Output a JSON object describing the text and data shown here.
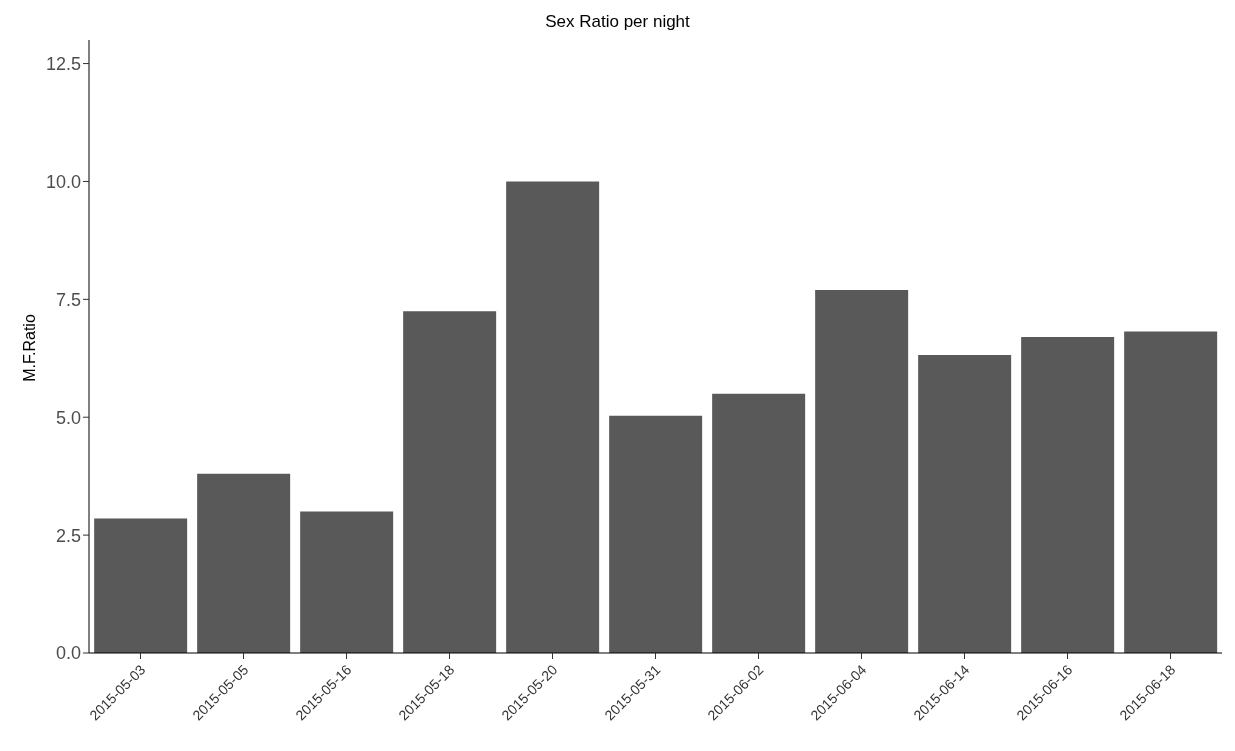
{
  "chart_data": {
    "type": "bar",
    "title": "Sex Ratio per night",
    "ylabel": "M.F.Ratio",
    "categories": [
      "2015-05-03",
      "2015-05-05",
      "2015-05-16",
      "2015-05-18",
      "2015-05-20",
      "2015-05-31",
      "2015-06-02",
      "2015-06-04",
      "2015-06-14",
      "2015-06-16",
      "2015-06-18"
    ],
    "values": [
      2.85,
      3.8,
      3.0,
      7.25,
      10.0,
      5.03,
      5.5,
      7.7,
      6.32,
      6.7,
      6.82
    ],
    "color": "#595959",
    "ylim": [
      0,
      13
    ],
    "yticks": [
      {
        "value": 0,
        "label": "0.0"
      },
      {
        "value": 2.5,
        "label": "2.5"
      },
      {
        "value": 5,
        "label": "5.0"
      },
      {
        "value": 7.5,
        "label": "7.5"
      },
      {
        "value": 10,
        "label": "10.0"
      },
      {
        "value": 12.5,
        "label": "12.5"
      }
    ],
    "grid": false
  }
}
